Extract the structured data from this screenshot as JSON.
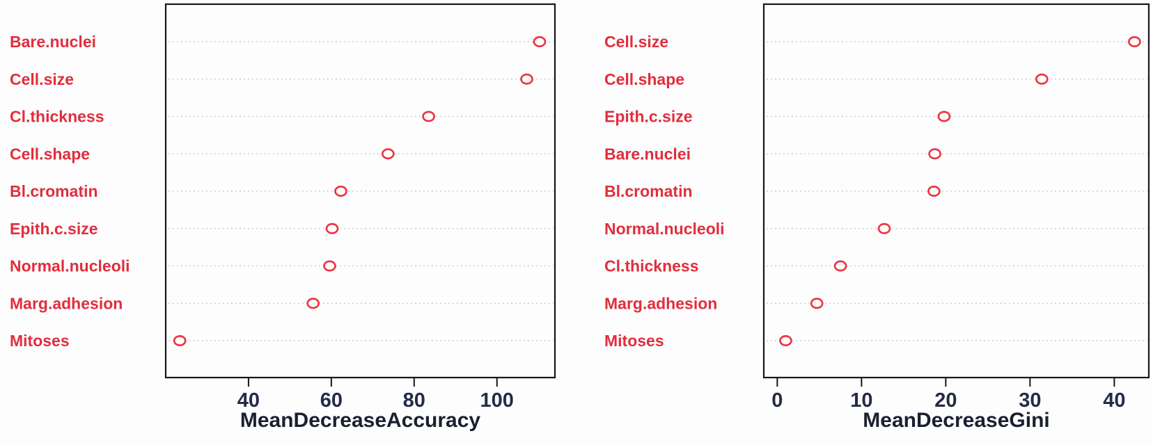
{
  "figure": {
    "background": "#fdfdfd",
    "label_color": "#e02e3d",
    "point_color": "#ea3744",
    "point_fill": "#ffffff",
    "grid_color": "#c6c6c6",
    "box_color": "#17171b",
    "tick_label_color": "#242b47",
    "axis_title_color": "#1b2030"
  },
  "chart_data": [
    {
      "type": "scatter",
      "subtype": "cleveland-dot-plot",
      "title": "",
      "xlabel": "MeanDecreaseAccuracy",
      "ylabel": "",
      "categories": [
        "Bare.nuclei",
        "Cell.size",
        "Cl.thickness",
        "Cell.shape",
        "Bl.cromatin",
        "Epith.c.size",
        "Normal.nucleoli",
        "Marg.adhesion",
        "Mitoses"
      ],
      "values": [
        110.3,
        107.2,
        83.5,
        73.7,
        62.3,
        60.2,
        59.6,
        55.6,
        23.4
      ],
      "xticks": [
        40,
        60,
        80,
        100
      ],
      "xlim": [
        20,
        114
      ],
      "grid": "dotted-horizontal-rows",
      "legend": "none",
      "marker": "open-circle"
    },
    {
      "type": "scatter",
      "subtype": "cleveland-dot-plot",
      "title": "",
      "xlabel": "MeanDecreaseGini",
      "ylabel": "",
      "categories": [
        "Cell.size",
        "Cell.shape",
        "Epith.c.size",
        "Bare.nuclei",
        "Bl.cromatin",
        "Normal.nucleoli",
        "Cl.thickness",
        "Marg.adhesion",
        "Mitoses"
      ],
      "values": [
        42.4,
        31.4,
        19.8,
        18.7,
        18.6,
        12.7,
        7.5,
        4.7,
        1.0
      ],
      "xticks": [
        0,
        10,
        20,
        30,
        40
      ],
      "xlim": [
        -1.6,
        44.1
      ],
      "grid": "dotted-horizontal-rows",
      "legend": "none",
      "marker": "open-circle"
    }
  ]
}
